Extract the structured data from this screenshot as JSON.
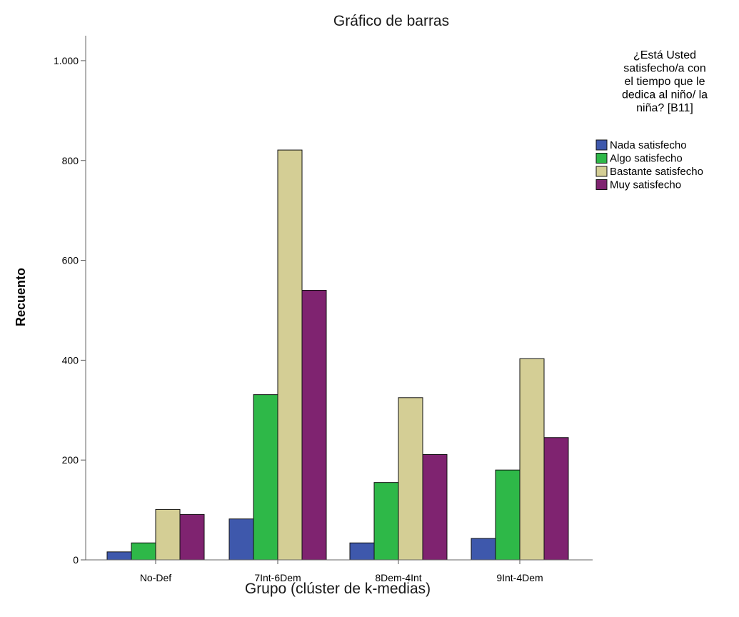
{
  "chart_data": {
    "type": "bar",
    "title": "Gráfico de barras",
    "xlabel": "Grupo (clúster de k-medias)",
    "ylabel": "Recuento",
    "categories": [
      "No-Def",
      "7Int-6Dem",
      "8Dem-4Int",
      "9Int-4Dem"
    ],
    "series": [
      {
        "name": "Nada satisfecho",
        "color": "#3E58AC",
        "values": [
          16,
          82,
          34,
          43
        ]
      },
      {
        "name": "Algo satisfecho",
        "color": "#2EB848",
        "values": [
          34,
          331,
          155,
          180
        ]
      },
      {
        "name": "Bastante satisfecho",
        "color": "#D4CE95",
        "values": [
          101,
          821,
          325,
          403
        ]
      },
      {
        "name": "Muy satisfecho",
        "color": "#7F2370",
        "values": [
          91,
          540,
          211,
          245
        ]
      }
    ],
    "ylim": [
      0,
      1050
    ],
    "yticks": [
      0,
      200,
      400,
      600,
      800,
      1000
    ],
    "ytick_labels": [
      "0",
      "200",
      "400",
      "600",
      "800",
      "1.000"
    ],
    "grid": false,
    "legend": {
      "placement": "right",
      "title_lines": [
        "¿Está Usted",
        "satisfecho/a con",
        "el tiempo que le",
        "dedica al niño/ la",
        "niña? [B11]"
      ]
    }
  }
}
